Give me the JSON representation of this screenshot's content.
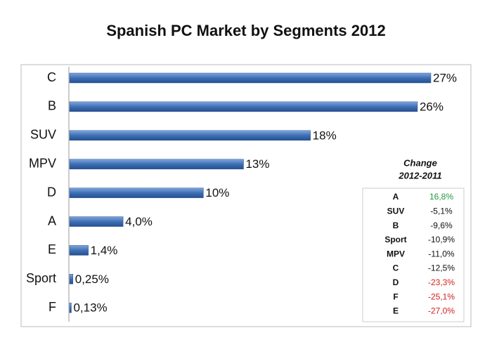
{
  "chart_data": {
    "type": "bar",
    "orientation": "horizontal",
    "title": "Spanish PC Market by Segments 2012",
    "categories": [
      "C",
      "B",
      "SUV",
      "MPV",
      "D",
      "A",
      "E",
      "Sport",
      "F"
    ],
    "values": [
      27,
      26,
      18,
      13,
      10,
      4.0,
      1.4,
      0.25,
      0.13
    ],
    "value_labels": [
      "27%",
      "26%",
      "18%",
      "13%",
      "10%",
      "4,0%",
      "1,4%",
      "0,25%",
      "0,13%"
    ],
    "color": "#3f6fb5"
  },
  "table": {
    "title": [
      "Change",
      "2012-2011"
    ],
    "rows": [
      {
        "segment": "A",
        "change": "16,8%",
        "color": "#1f9a3a"
      },
      {
        "segment": "SUV",
        "change": "-5,1%",
        "color": "#111111"
      },
      {
        "segment": "B",
        "change": "-9,6%",
        "color": "#111111"
      },
      {
        "segment": "Sport",
        "change": "-10,9%",
        "color": "#111111"
      },
      {
        "segment": "MPV",
        "change": "-11,0%",
        "color": "#111111"
      },
      {
        "segment": "C",
        "change": "-12,5%",
        "color": "#111111"
      },
      {
        "segment": "D",
        "change": "-23,3%",
        "color": "#d42020"
      },
      {
        "segment": "F",
        "change": "-25,1%",
        "color": "#d42020"
      },
      {
        "segment": "E",
        "change": "-27,0%",
        "color": "#d42020"
      }
    ]
  }
}
